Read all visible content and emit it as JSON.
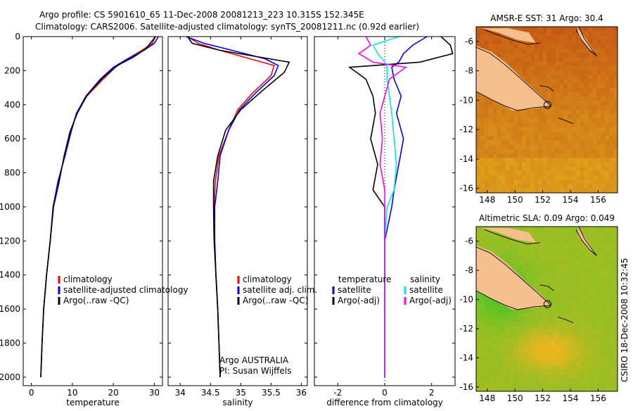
{
  "header": {
    "line1": "Argo profile: CS 5901610_65 11-Dec-2008 20081213_223 10.315S 152.345E",
    "line2": "Climatology: CARS2006. Satellite-adjusted climatology: synTS_20081211.nc (0.92d earlier)"
  },
  "credit": {
    "agency": "Argo AUSTRALIA",
    "pi": "PI: Susan Wijffels",
    "side_stamp": "CSIRO 18-Dec-2008 10:32:45"
  },
  "colors": {
    "climatology": "#ff0000",
    "satellite": "#0000ff",
    "argo": "#000000",
    "diff_sal_sat": "#00e5ee",
    "diff_sal_argo": "#ff00ff",
    "land": "#f5c08e",
    "coast": "#000000"
  },
  "chart_data": [
    {
      "id": "temperature",
      "type": "line",
      "xlabel": "temperature",
      "ylabel": "",
      "xlim": [
        -2,
        32
      ],
      "ylim": [
        2050,
        0
      ],
      "xticks": [
        0,
        10,
        20,
        30
      ],
      "yticks": [
        0,
        200,
        400,
        600,
        800,
        1000,
        1200,
        1400,
        1600,
        1800,
        2000
      ],
      "legend": {
        "position": "bottom-right",
        "entries": [
          "climatology",
          "satellite-adjusted climatology",
          "Argo(..raw -QC)"
        ]
      },
      "series": [
        {
          "name": "climatology",
          "color": "#ff0000",
          "x": [
            30.3,
            29.5,
            27.0,
            23.5,
            20.5,
            17.5,
            13.5,
            11.0,
            9.8,
            8.2,
            6.5,
            5.3,
            4.6,
            3.7,
            3.0,
            2.6,
            2.3
          ],
          "y": [
            0,
            40,
            80,
            130,
            180,
            250,
            350,
            450,
            550,
            700,
            850,
            1000,
            1200,
            1400,
            1600,
            1800,
            2000
          ]
        },
        {
          "name": "satellite-adjusted climatology",
          "color": "#0000ff",
          "x": [
            31.0,
            30.0,
            27.5,
            23.5,
            20.0,
            16.8,
            13.3,
            11.0,
            9.8,
            8.2,
            6.5,
            5.3,
            4.6,
            3.7,
            3.0,
            2.6,
            2.3
          ],
          "y": [
            0,
            40,
            80,
            130,
            180,
            250,
            350,
            450,
            550,
            700,
            850,
            1000,
            1200,
            1400,
            1600,
            1800,
            2000
          ]
        },
        {
          "name": "Argo(..raw -QC)",
          "color": "#000000",
          "x": [
            30.3,
            29.3,
            28.0,
            25.0,
            21.0,
            17.5,
            13.7,
            11.2,
            9.4,
            8.0,
            6.8,
            5.4,
            4.6,
            3.7,
            3.0,
            2.6,
            2.3
          ],
          "y": [
            0,
            30,
            70,
            120,
            170,
            240,
            340,
            450,
            560,
            700,
            850,
            1000,
            1200,
            1400,
            1600,
            1800,
            2000
          ]
        }
      ]
    },
    {
      "id": "salinity",
      "type": "line",
      "xlabel": "salinity",
      "ylabel": "",
      "xlim": [
        33.8,
        36.1
      ],
      "ylim": [
        2050,
        0
      ],
      "xticks": [
        34,
        34.5,
        35,
        35.5,
        36
      ],
      "legend": {
        "position": "bottom-right",
        "entries": [
          "climatology",
          "satellite adj. clim.",
          "Argo(..raw -QC)"
        ]
      },
      "series": [
        {
          "name": "climatology",
          "color": "#ff0000",
          "x": [
            34.12,
            34.3,
            34.65,
            35.15,
            35.55,
            35.5,
            35.2,
            34.95,
            34.8,
            34.64,
            34.58,
            34.56,
            34.57,
            34.59,
            34.62,
            34.64,
            34.66
          ],
          "y": [
            0,
            40,
            80,
            130,
            170,
            230,
            330,
            430,
            550,
            700,
            850,
            1000,
            1200,
            1400,
            1600,
            1800,
            2000
          ]
        },
        {
          "name": "satellite adj. clim.",
          "color": "#0000ff",
          "x": [
            34.1,
            34.4,
            34.85,
            35.4,
            35.62,
            35.55,
            35.25,
            34.98,
            34.8,
            34.66,
            34.62,
            34.57,
            34.57,
            34.59,
            34.62,
            34.64,
            34.66
          ],
          "y": [
            0,
            40,
            80,
            130,
            170,
            230,
            330,
            430,
            550,
            700,
            850,
            1000,
            1200,
            1400,
            1600,
            1800,
            2000
          ]
        },
        {
          "name": "Argo(..raw -QC)",
          "color": "#000000",
          "x": [
            34.12,
            34.2,
            34.65,
            35.3,
            35.8,
            35.72,
            35.35,
            35.0,
            34.75,
            34.62,
            34.55,
            34.55,
            34.56,
            34.59,
            34.62,
            34.64,
            34.66
          ],
          "y": [
            0,
            40,
            80,
            120,
            150,
            210,
            320,
            430,
            550,
            700,
            850,
            1000,
            1200,
            1400,
            1600,
            1800,
            2000
          ]
        }
      ]
    },
    {
      "id": "difference",
      "type": "line",
      "xlabel": "difference from climatology",
      "ylabel": "",
      "xlim": [
        -3,
        3
      ],
      "ylim": [
        2050,
        0
      ],
      "xticks": [
        -2,
        0,
        2
      ],
      "legend": {
        "position": "bottom",
        "temperature_header": "temperature",
        "salinity_header": "salinity",
        "entries": [
          "satellite",
          "Argo(-adj)",
          "satellite",
          "Argo(-adj)"
        ]
      },
      "series": [
        {
          "name": "temperature satellite",
          "color": "#0000ff",
          "x": [
            1.8,
            1.2,
            0.8,
            0.6,
            0.3,
            0.4,
            0.7,
            0.5,
            0.8,
            0.6,
            0.4,
            0.3,
            0.0,
            0.0,
            0.0,
            0.0,
            0.0
          ],
          "y": [
            0,
            50,
            100,
            150,
            180,
            250,
            350,
            450,
            600,
            750,
            900,
            1000,
            1200,
            1400,
            1600,
            1800,
            2000
          ]
        },
        {
          "name": "temperature Argo(-adj)",
          "color": "#000000",
          "x": [
            2.4,
            2.8,
            2.9,
            1.5,
            -1.5,
            -0.8,
            -0.5,
            -0.4,
            -0.6,
            -0.3,
            -0.5,
            0.0,
            0.0,
            0.0,
            0.0,
            0.0,
            0.0
          ],
          "y": [
            0,
            50,
            100,
            150,
            180,
            250,
            350,
            450,
            600,
            750,
            900,
            1000,
            1200,
            1400,
            1600,
            1800,
            2000
          ]
        },
        {
          "name": "salinity satellite",
          "color": "#00e5ee",
          "x": [
            0.6,
            -0.5,
            -0.3,
            0.0,
            0.1,
            0.1,
            0.2,
            0.3,
            0.4,
            0.5,
            0.4,
            0.1,
            0.0,
            0.0,
            0.0,
            0.0,
            0.0
          ],
          "y": [
            0,
            50,
            100,
            150,
            180,
            250,
            350,
            450,
            600,
            750,
            900,
            1000,
            1200,
            1400,
            1600,
            1800,
            2000
          ]
        },
        {
          "name": "salinity Argo(-adj)",
          "color": "#ff00ff",
          "x": [
            -0.8,
            -0.6,
            -1.1,
            -0.5,
            0.9,
            0.2,
            0.0,
            -0.2,
            -0.1,
            -0.2,
            0.0,
            0.0,
            0.0,
            0.0,
            0.0,
            0.0,
            0.0
          ],
          "y": [
            0,
            50,
            100,
            150,
            180,
            250,
            350,
            450,
            600,
            750,
            900,
            1000,
            1200,
            1400,
            1600,
            1800,
            2000
          ]
        }
      ]
    },
    {
      "id": "sst-map",
      "type": "heatmap",
      "title": "AMSR-E SST: 31 Argo: 30.4",
      "xlim": [
        147.2,
        157.4
      ],
      "ylim": [
        -16.3,
        -5.0
      ],
      "xticks": [
        148,
        150,
        152,
        154,
        156
      ],
      "yticks": [
        -6,
        -8,
        -10,
        -12,
        -14,
        -16
      ],
      "marker": {
        "lon": 152.345,
        "lat": -10.315
      }
    },
    {
      "id": "sla-map",
      "type": "heatmap",
      "title": "Altimetric SLA: 0.09 Argo: 0.049",
      "xlim": [
        147.2,
        157.4
      ],
      "ylim": [
        -16.3,
        -5.0
      ],
      "xticks": [
        148,
        150,
        152,
        154,
        156
      ],
      "yticks": [
        -6,
        -8,
        -10,
        -12,
        -14,
        -16
      ],
      "marker": {
        "lon": 152.345,
        "lat": -10.315
      }
    }
  ]
}
